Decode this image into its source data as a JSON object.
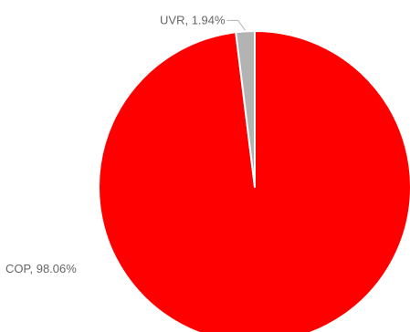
{
  "chart_data": {
    "type": "pie",
    "slices": [
      {
        "name": "COP",
        "value": 98.06,
        "label": "COP, 98.06%",
        "color": "#ff0000"
      },
      {
        "name": "UVR",
        "value": 1.94,
        "label": "UVR, 1.94%",
        "color": "#b3b3b3"
      }
    ],
    "unit": "%",
    "slice_border_color": "#ffffff",
    "label_color": "#666666",
    "connector_color": "#b3b3b3"
  }
}
